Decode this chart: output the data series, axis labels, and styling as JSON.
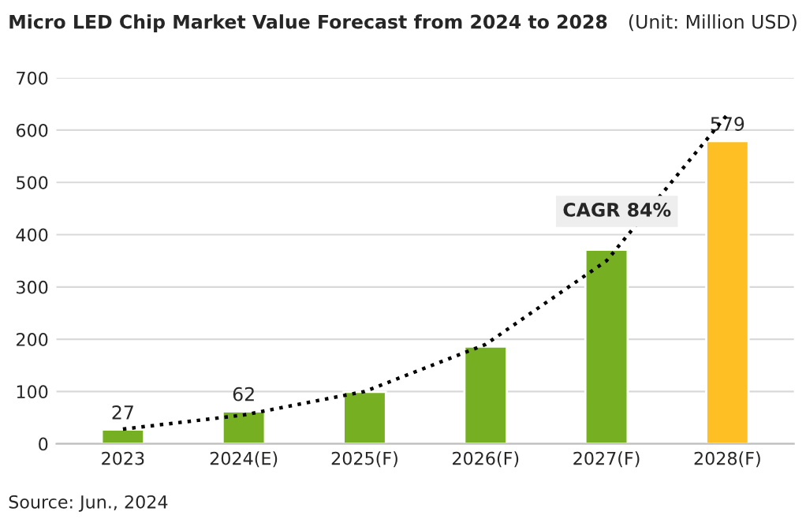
{
  "chart_data": {
    "type": "bar",
    "title": "Micro LED Chip Market Value Forecast from 2024 to 2028",
    "subtitle": "(Unit: Million USD)",
    "categories": [
      "2023",
      "2024(E)",
      "2025(F)",
      "2026(F)",
      "2027(F)",
      "2028(F)"
    ],
    "series": [
      {
        "colors": [
          "#76b022",
          "#76b022",
          "#76b022",
          "#76b022",
          "#76b022",
          "#fdbf24"
        ],
        "values": [
          27,
          62,
          99,
          186,
          371,
          579
        ],
        "value_labels": [
          "27",
          "62",
          null,
          null,
          null,
          "579"
        ]
      },
      {
        "type": "line",
        "color": "#000000",
        "line_style": "dotted",
        "values": [
          28,
          55,
          100,
          190,
          350,
          630
        ]
      }
    ],
    "ylim": [
      0,
      700
    ],
    "yticks": [
      0,
      100,
      200,
      300,
      400,
      500,
      600,
      700
    ],
    "grid": "y",
    "annotations": [
      "CAGR 84%",
      "Source: Jun., 2024"
    ]
  }
}
